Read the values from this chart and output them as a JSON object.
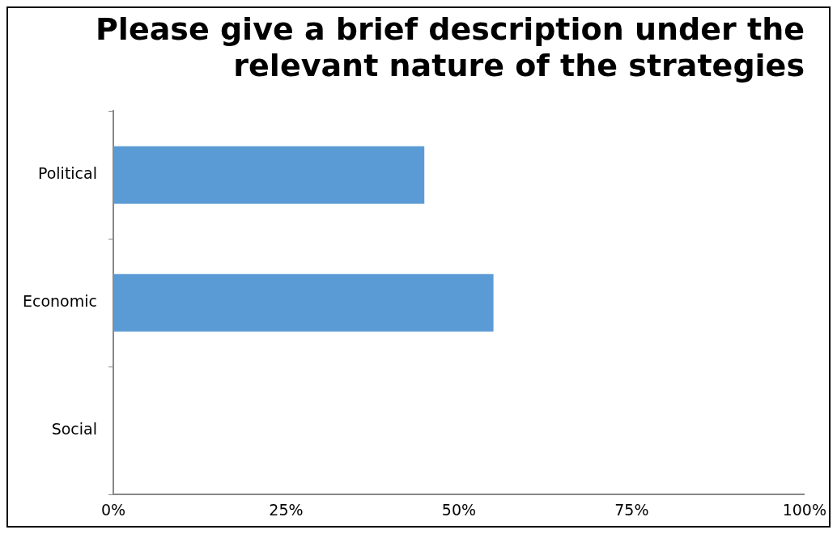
{
  "chart_data": {
    "type": "bar",
    "orientation": "horizontal",
    "title": "Please give a brief description under the relevant nature of the strategies",
    "categories": [
      "Political",
      "Economic",
      "Social"
    ],
    "values": [
      45,
      55,
      0
    ],
    "color": "#5b9bd5",
    "xlim": [
      0,
      100
    ],
    "xticks": [
      {
        "value": 0,
        "label": "0%"
      },
      {
        "value": 25,
        "label": "25%"
      },
      {
        "value": 50,
        "label": "50%"
      },
      {
        "value": 75,
        "label": "75%"
      },
      {
        "value": 100,
        "label": "100%"
      }
    ],
    "grid": false,
    "legend": false
  }
}
